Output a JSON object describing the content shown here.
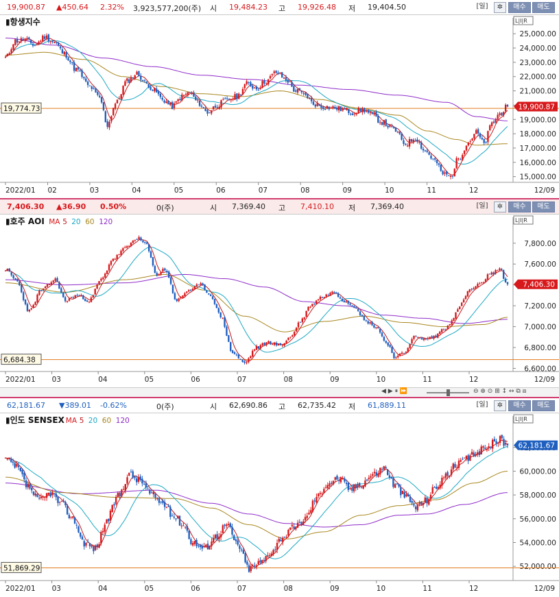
{
  "colors": {
    "up": "#d7191c",
    "down": "#1f5fbf",
    "ma5": "#c0161b",
    "ma20": "#1aa7c4",
    "ma60": "#a8861e",
    "ma120": "#8e2bc8",
    "ref": "#e07a1f"
  },
  "buttons": {
    "day": "[일]",
    "gear": "✲",
    "buy": "매수",
    "sell": "매도"
  },
  "ma_legend": {
    "prefix": "MA",
    "p5": "5",
    "p20": "20",
    "p60": "60",
    "p120": "120"
  },
  "panels": [
    {
      "info": {
        "last": "19,900.87",
        "change": "▲450.64",
        "pct": "2.32%",
        "volume": "3,923,577,200(주)",
        "open_label": "시",
        "open": "19,484.23",
        "high_label": "고",
        "high": "19,926.48",
        "low_label": "저",
        "low": "19,404.50"
      },
      "chart_data": {
        "type": "candlestick",
        "title": "항생지수",
        "show_ma_legend": false,
        "x_ticks": [
          "2022/01",
          "02",
          "03",
          "04",
          "05",
          "06",
          "07",
          "08",
          "09",
          "10",
          "11",
          "12"
        ],
        "end_label": "12/09",
        "y_ticks": [
          "25,000.00",
          "24,000.00",
          "23,000.00",
          "22,000.00",
          "21,000.00",
          "20,000.00",
          "19,000.00",
          "18,000.00",
          "17,000.00",
          "16,000.00",
          "15,000.00"
        ],
        "ylim": [
          14600,
          25250
        ],
        "last_price": 19900.87,
        "last_label": "19,900.87",
        "ref_level": 19774.73,
        "ref_label": "19,774.73",
        "anchors": [
          [
            0,
            23300
          ],
          [
            5,
            24500
          ],
          [
            10,
            24600
          ],
          [
            15,
            24200
          ],
          [
            20,
            24800
          ],
          [
            25,
            24400
          ],
          [
            30,
            23600
          ],
          [
            36,
            22500
          ],
          [
            43,
            21300
          ],
          [
            48,
            20500
          ],
          [
            52,
            18600
          ],
          [
            56,
            20100
          ],
          [
            62,
            21700
          ],
          [
            67,
            22200
          ],
          [
            72,
            21500
          ],
          [
            76,
            21000
          ],
          [
            80,
            20400
          ],
          [
            85,
            19900
          ],
          [
            90,
            20600
          ],
          [
            94,
            20900
          ],
          [
            98,
            20200
          ],
          [
            103,
            19500
          ],
          [
            108,
            20000
          ],
          [
            112,
            20300
          ],
          [
            118,
            20600
          ],
          [
            123,
            21500
          ],
          [
            128,
            21200
          ],
          [
            133,
            21700
          ],
          [
            138,
            22300
          ],
          [
            143,
            21800
          ],
          [
            148,
            21000
          ],
          [
            153,
            20700
          ],
          [
            157,
            20100
          ],
          [
            162,
            19900
          ],
          [
            168,
            19800
          ],
          [
            172,
            19700
          ],
          [
            177,
            19500
          ],
          [
            182,
            19700
          ],
          [
            187,
            19300
          ],
          [
            192,
            18800
          ],
          [
            198,
            18300
          ],
          [
            204,
            17300
          ],
          [
            209,
            17700
          ],
          [
            214,
            16800
          ],
          [
            219,
            16100
          ],
          [
            223,
            15200
          ],
          [
            227,
            15000
          ],
          [
            231,
            16300
          ],
          [
            236,
            17400
          ],
          [
            240,
            18100
          ],
          [
            244,
            17300
          ],
          [
            248,
            18700
          ],
          [
            252,
            19400
          ],
          [
            256,
            19900
          ]
        ],
        "ma60_anchors": [
          [
            0,
            23500
          ],
          [
            20,
            23700
          ],
          [
            40,
            23200
          ],
          [
            60,
            22000
          ],
          [
            80,
            21300
          ],
          [
            100,
            20800
          ],
          [
            120,
            20600
          ],
          [
            140,
            21000
          ],
          [
            160,
            20400
          ],
          [
            180,
            19800
          ],
          [
            200,
            19300
          ],
          [
            215,
            18200
          ],
          [
            230,
            17600
          ],
          [
            240,
            17200
          ],
          [
            256,
            17300
          ]
        ],
        "ma120_anchors": [
          [
            0,
            24700
          ],
          [
            25,
            24200
          ],
          [
            50,
            23300
          ],
          [
            75,
            22700
          ],
          [
            100,
            22100
          ],
          [
            125,
            21800
          ],
          [
            150,
            21400
          ],
          [
            175,
            21100
          ],
          [
            200,
            20700
          ],
          [
            225,
            20200
          ],
          [
            240,
            19200
          ],
          [
            256,
            18900
          ]
        ],
        "ma120_start": 0,
        "volatility": 260,
        "seed": 11
      }
    },
    {
      "info": {
        "last": "7,406.30",
        "change": "▲36.90",
        "pct": "0.50%",
        "volume": "0(주)",
        "open_label": "시",
        "open": "7,369.40",
        "high_label": "고",
        "high": "7,410.10",
        "low_label": "저",
        "low": "7,369.40"
      },
      "chart_data": {
        "type": "candlestick",
        "title": "호주 AOI",
        "show_ma_legend": true,
        "x_ticks": [
          "2022/01",
          "03",
          "04",
          "05",
          "06",
          "07",
          "08",
          "09",
          "10",
          "11",
          "12"
        ],
        "end_label": "12/09",
        "y_ticks": [
          "7,800.00",
          "7,600.00",
          "7,400.00",
          "7,200.00",
          "7,000.00",
          "6,800.00",
          "6,600.00"
        ],
        "ylim": [
          6570,
          7930
        ],
        "last_price": 7406.3,
        "last_label": "7,406.30",
        "ref_level": 6684.38,
        "ref_label": "6,684.38",
        "anchors": [
          [
            0,
            7550
          ],
          [
            5,
            7450
          ],
          [
            12,
            7150
          ],
          [
            18,
            7350
          ],
          [
            25,
            7450
          ],
          [
            30,
            7250
          ],
          [
            36,
            7300
          ],
          [
            42,
            7250
          ],
          [
            48,
            7450
          ],
          [
            54,
            7650
          ],
          [
            60,
            7750
          ],
          [
            66,
            7850
          ],
          [
            70,
            7800
          ],
          [
            76,
            7500
          ],
          [
            80,
            7550
          ],
          [
            86,
            7250
          ],
          [
            92,
            7350
          ],
          [
            98,
            7400
          ],
          [
            103,
            7300
          ],
          [
            108,
            7100
          ],
          [
            114,
            6750
          ],
          [
            120,
            6650
          ],
          [
            126,
            6800
          ],
          [
            132,
            6850
          ],
          [
            138,
            6820
          ],
          [
            143,
            6900
          ],
          [
            148,
            7050
          ],
          [
            153,
            7200
          ],
          [
            158,
            7280
          ],
          [
            165,
            7330
          ],
          [
            170,
            7250
          ],
          [
            175,
            7200
          ],
          [
            181,
            7050
          ],
          [
            186,
            7000
          ],
          [
            191,
            6850
          ],
          [
            196,
            6700
          ],
          [
            200,
            6750
          ],
          [
            205,
            6900
          ],
          [
            210,
            6880
          ],
          [
            215,
            6900
          ],
          [
            220,
            6980
          ],
          [
            224,
            7050
          ],
          [
            228,
            7200
          ],
          [
            233,
            7350
          ],
          [
            238,
            7400
          ],
          [
            243,
            7500
          ],
          [
            248,
            7550
          ],
          [
            252,
            7400
          ]
        ],
        "ma60_anchors": [
          [
            0,
            7420
          ],
          [
            30,
            7330
          ],
          [
            60,
            7450
          ],
          [
            80,
            7500
          ],
          [
            100,
            7350
          ],
          [
            120,
            7100
          ],
          [
            140,
            6950
          ],
          [
            160,
            7050
          ],
          [
            180,
            7100
          ],
          [
            200,
            7040
          ],
          [
            220,
            7000
          ],
          [
            240,
            7020
          ],
          [
            252,
            7090
          ]
        ],
        "ma120_anchors": [
          [
            0,
            7450
          ],
          [
            30,
            7400
          ],
          [
            60,
            7420
          ],
          [
            90,
            7500
          ],
          [
            110,
            7460
          ],
          [
            130,
            7380
          ],
          [
            150,
            7240
          ],
          [
            170,
            7200
          ],
          [
            190,
            7110
          ],
          [
            210,
            7080
          ],
          [
            230,
            7030
          ],
          [
            252,
            7070
          ]
        ],
        "ma120_start": 0,
        "volatility": 22,
        "seed": 23
      }
    },
    {
      "info": {
        "last": "62,181.67",
        "change": "▼389.01",
        "pct": "-0.62%",
        "volume": "0(주)",
        "open_label": "시",
        "open": "62,690.86",
        "high_label": "고",
        "high": "62,735.42",
        "low_label": "저",
        "low": "61,889.11"
      },
      "chart_data": {
        "type": "candlestick",
        "title": "인도 SENSEX",
        "show_ma_legend": true,
        "x_ticks": [
          "2022/01",
          "03",
          "04",
          "05",
          "06",
          "07",
          "08",
          "09",
          "10",
          "11",
          "12"
        ],
        "end_label": "12/09",
        "y_ticks": [
          "62,000.00",
          "60,000.00",
          "58,000.00",
          "56,000.00",
          "54,000.00",
          "52,000.00"
        ],
        "ylim": [
          50800,
          63600
        ],
        "last_price": 62181.67,
        "last_label": "62,181.67",
        "ref_level": 51869.29,
        "ref_label": "51,869.29",
        "anchors": [
          [
            0,
            61000
          ],
          [
            6,
            60300
          ],
          [
            12,
            58700
          ],
          [
            18,
            57500
          ],
          [
            24,
            58200
          ],
          [
            30,
            57200
          ],
          [
            36,
            56000
          ],
          [
            42,
            54000
          ],
          [
            48,
            53500
          ],
          [
            54,
            55800
          ],
          [
            60,
            57900
          ],
          [
            66,
            59700
          ],
          [
            72,
            59200
          ],
          [
            78,
            58000
          ],
          [
            84,
            57300
          ],
          [
            90,
            56200
          ],
          [
            95,
            55500
          ],
          [
            100,
            54000
          ],
          [
            106,
            53500
          ],
          [
            112,
            54500
          ],
          [
            118,
            55500
          ],
          [
            124,
            53800
          ],
          [
            130,
            51800
          ],
          [
            136,
            52300
          ],
          [
            142,
            53300
          ],
          [
            148,
            54500
          ],
          [
            154,
            55200
          ],
          [
            160,
            56000
          ],
          [
            166,
            57800
          ],
          [
            172,
            59000
          ],
          [
            178,
            59400
          ],
          [
            184,
            58500
          ],
          [
            190,
            59000
          ],
          [
            196,
            59700
          ],
          [
            202,
            60300
          ],
          [
            208,
            58800
          ],
          [
            214,
            57800
          ],
          [
            219,
            57000
          ],
          [
            224,
            57500
          ],
          [
            229,
            58500
          ],
          [
            234,
            59500
          ],
          [
            240,
            60400
          ],
          [
            246,
            61000
          ],
          [
            252,
            61600
          ],
          [
            258,
            62200
          ],
          [
            264,
            62700
          ],
          [
            268,
            62180
          ]
        ],
        "ma60_anchors": [
          [
            0,
            59500
          ],
          [
            30,
            58200
          ],
          [
            60,
            57800
          ],
          [
            90,
            57700
          ],
          [
            110,
            56900
          ],
          [
            130,
            55500
          ],
          [
            150,
            54300
          ],
          [
            170,
            54900
          ],
          [
            190,
            56300
          ],
          [
            210,
            57100
          ],
          [
            230,
            57600
          ],
          [
            250,
            59000
          ],
          [
            268,
            60000
          ]
        ],
        "ma120_anchors": [
          [
            0,
            59000
          ],
          [
            40,
            58100
          ],
          [
            80,
            58400
          ],
          [
            110,
            57300
          ],
          [
            130,
            56400
          ],
          [
            150,
            55600
          ],
          [
            170,
            55300
          ],
          [
            190,
            55500
          ],
          [
            210,
            56300
          ],
          [
            225,
            56400
          ],
          [
            245,
            57200
          ],
          [
            268,
            58200
          ]
        ],
        "ma120_start": 0,
        "volatility": 420,
        "seed": 37
      }
    }
  ],
  "toolbar": {
    "nav": "◀ ▶ ⏸ ⏩",
    "zoom": "⊖ ⊕ ⊙ ⊞ ↕ ↔ ⧉ ⧈"
  }
}
